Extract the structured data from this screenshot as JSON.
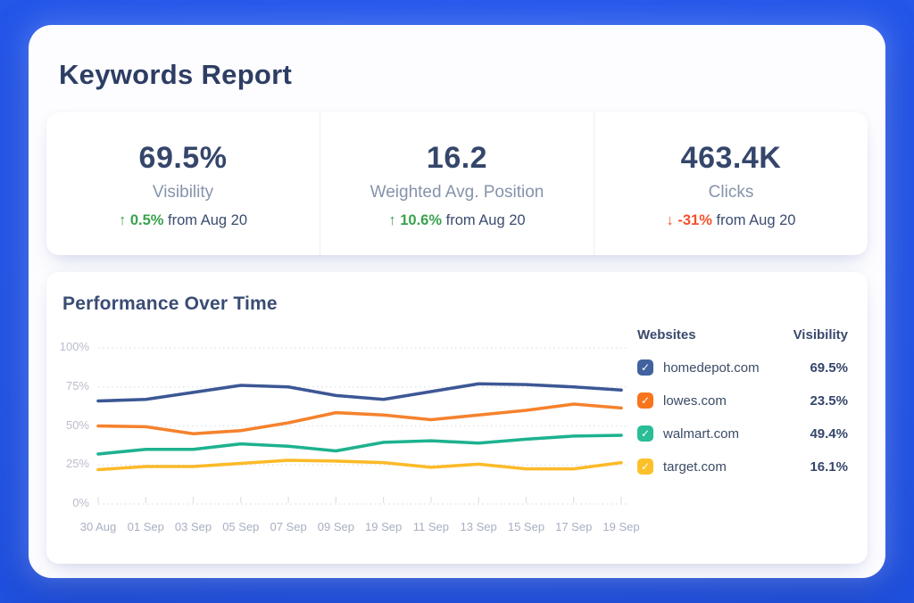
{
  "title": "Keywords Report",
  "stats": [
    {
      "value": "69.5%",
      "label": "Visibility",
      "arrow": "↑",
      "delta": "0.5%",
      "compare_text": "from Aug 20",
      "direction": "up"
    },
    {
      "value": "16.2",
      "label": "Weighted Avg. Position",
      "arrow": "↑",
      "delta": "10.6%",
      "compare_text": "from Aug 20",
      "direction": "up"
    },
    {
      "value": "463.4K",
      "label": "Clicks",
      "arrow": "↓",
      "delta": "-31%",
      "compare_text": "from Aug 20",
      "direction": "down"
    }
  ],
  "colors": {
    "accent_blue": "#2254e6",
    "up_green": "#39a24e",
    "down_red": "#f4512b",
    "navy_text": "#2d3d64",
    "muted_label": "#8693ab"
  },
  "chart_data": {
    "type": "line",
    "title": "Performance Over Time",
    "x_labels": [
      "30 Aug",
      "01 Sep",
      "03 Sep",
      "05 Sep",
      "07 Sep",
      "09 Sep",
      "19 Sep",
      "11 Sep",
      "13 Sep",
      "15 Sep",
      "17 Sep",
      "19 Sep"
    ],
    "y_ticks": [
      "100%",
      "75%",
      "50%",
      "25%",
      "0%"
    ],
    "ylim": [
      0,
      100
    ],
    "grid": "horizontal-dotted",
    "legend_position": "right",
    "legend_header_left": "Websites",
    "legend_header_right": "Visibility",
    "series": [
      {
        "name": "homedepot.com",
        "color": "#3c5795",
        "checkbox_color": "#41629e",
        "visibility": "69.5%",
        "values": [
          66,
          67,
          71.5,
          76,
          75,
          69.5,
          67,
          72,
          77,
          76.5,
          75,
          73
        ]
      },
      {
        "name": "lowes.com",
        "color": "#f5822d",
        "checkbox_color": "#f8751d",
        "visibility": "23.5%",
        "values": [
          50,
          49.5,
          45,
          47,
          52,
          58.5,
          57,
          54,
          57,
          60,
          64,
          61.5
        ]
      },
      {
        "name": "walmart.com",
        "color": "#1db28f",
        "checkbox_color": "#2abd96",
        "visibility": "49.4%",
        "values": [
          32,
          35,
          35,
          38.5,
          37,
          34,
          39.5,
          40.5,
          39,
          41.5,
          43.5,
          44
        ]
      },
      {
        "name": "target.com",
        "color": "#fcba28",
        "checkbox_color": "#fcc028",
        "visibility": "16.1%",
        "values": [
          22,
          24,
          24,
          26,
          28,
          27.5,
          26.5,
          23.5,
          25.5,
          22.5,
          22.5,
          26.5
        ]
      }
    ]
  }
}
